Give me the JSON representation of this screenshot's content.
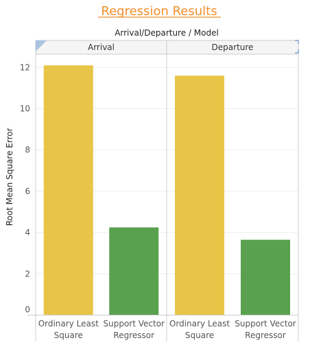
{
  "title": "Regression Results",
  "header_title": "Arrival/Departure / Model",
  "colors": {
    "title": "#f28e2b",
    "ordinary_least_square": "#e8c547",
    "support_vector_regressor": "#59a14f",
    "gridline": "#eeeeee",
    "border": "#cccccc",
    "header_bg": "#f5f5f5"
  },
  "chart_data": {
    "type": "bar",
    "title": "Regression Results",
    "ylabel": "Root Mean Square Error",
    "xlabel": "",
    "ylim": [
      0,
      12.9
    ],
    "yticks": [
      "0",
      "2",
      "4",
      "6",
      "8",
      "10",
      "12"
    ],
    "grid": true,
    "panes": [
      {
        "label": "Arrival",
        "bars": [
          {
            "category": "Ordinary Least Square",
            "label_lines": [
              "Ordinary Least",
              "Square"
            ],
            "value": 12.1,
            "color_key": "ordinary_least_square"
          },
          {
            "category": "Support Vector Regressor",
            "label_lines": [
              "Support Vector",
              "Regressor"
            ],
            "value": 4.25,
            "color_key": "support_vector_regressor"
          }
        ]
      },
      {
        "label": "Departure",
        "bars": [
          {
            "category": "Ordinary Least Square",
            "label_lines": [
              "Ordinary Least",
              "Square"
            ],
            "value": 11.6,
            "color_key": "ordinary_least_square"
          },
          {
            "category": "Support Vector Regressor",
            "label_lines": [
              "Support Vector",
              "Regressor"
            ],
            "value": 3.65,
            "color_key": "support_vector_regressor"
          }
        ]
      }
    ]
  }
}
